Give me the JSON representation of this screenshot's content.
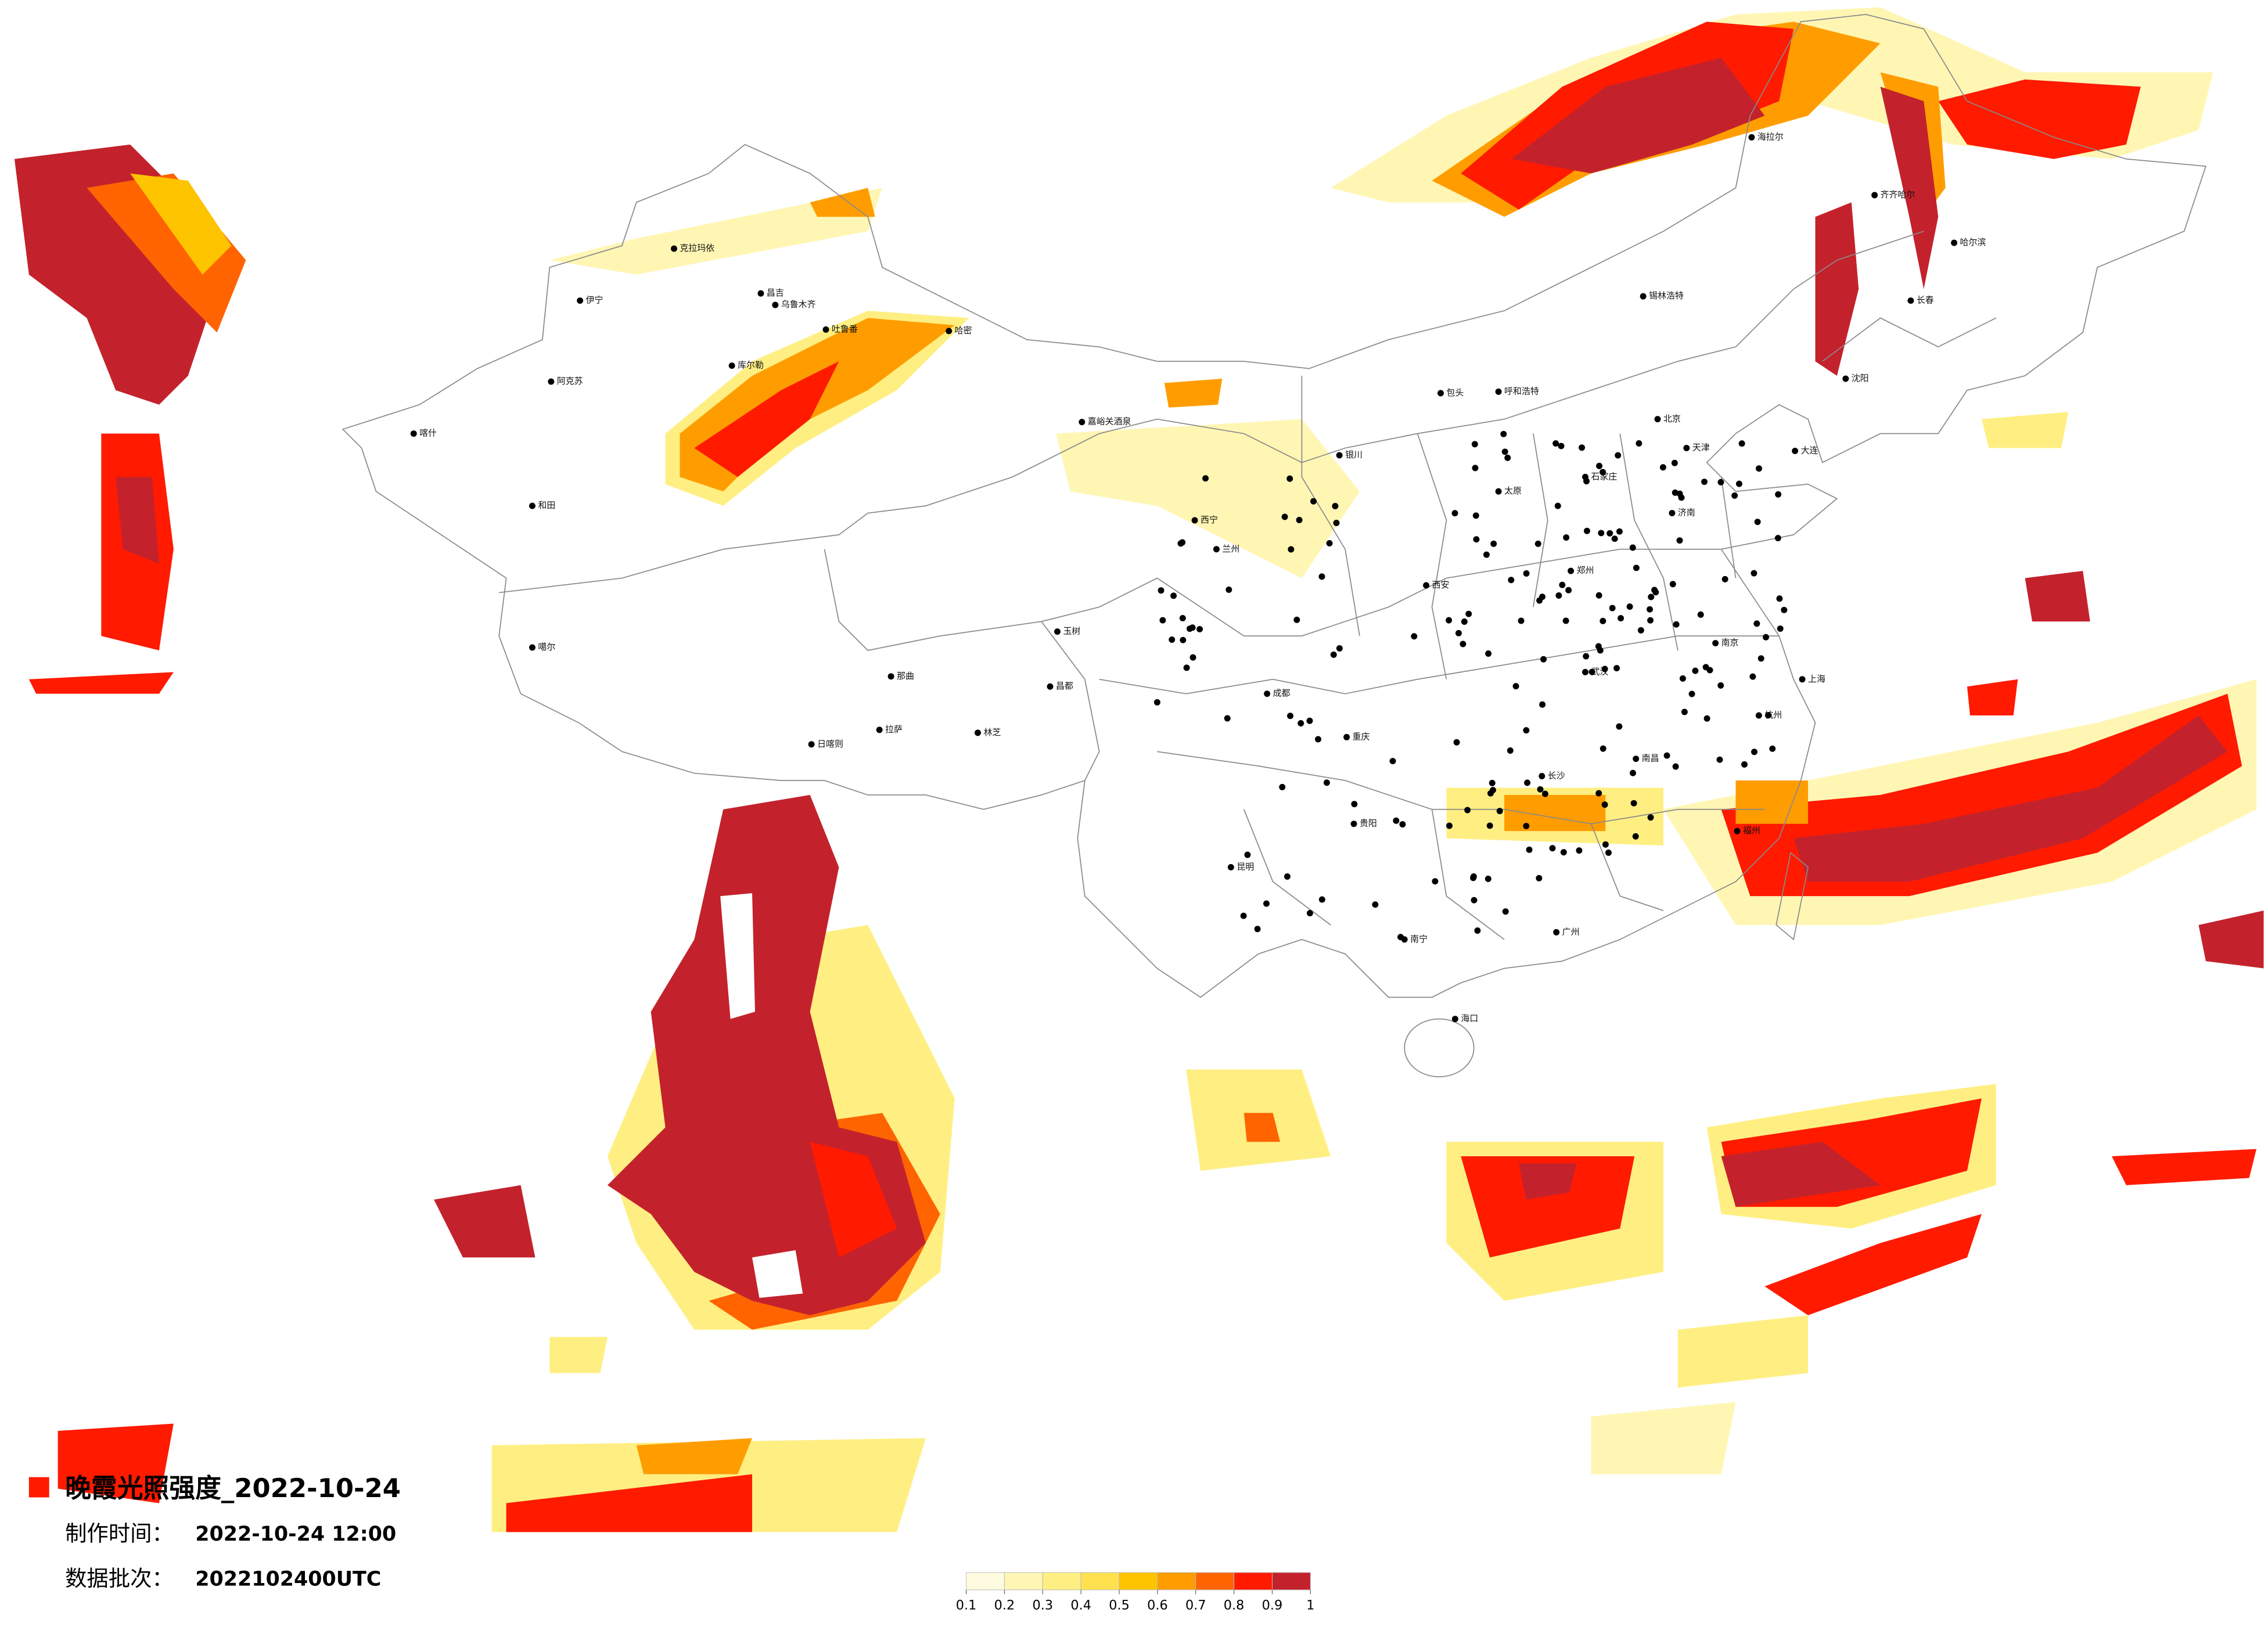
{
  "title": "晚霞光照强度_2022-10-24",
  "made_time": {
    "label": "制作时间：",
    "value": "2022-10-24 12:00"
  },
  "batch": {
    "label": "数据批次：",
    "value": "2022102400UTC"
  },
  "legend": {
    "ticks": [
      0.1,
      0.2,
      0.3,
      0.4,
      0.5,
      0.6,
      0.7,
      0.8,
      0.9,
      1
    ],
    "colors": [
      "#fffbe0",
      "#fff6b4",
      "#ffef82",
      "#ffe14f",
      "#ffc400",
      "#ff9d00",
      "#ff6400",
      "#ff1a00",
      "#c3222c"
    ]
  },
  "cities": [
    "克拉玛依",
    "伊宁",
    "昌吉",
    "乌鲁木齐",
    "吐鲁番",
    "哈密",
    "库尔勒",
    "阿克苏",
    "喀什",
    "和田",
    "噶尔",
    "日喀则",
    "拉萨",
    "林芝",
    "那曲",
    "昌都",
    "玉树",
    "嘉峪关酒泉",
    "西宁",
    "兰州",
    "银川",
    "呼和浩特",
    "包头",
    "北京",
    "天津",
    "石家庄",
    "太原",
    "济南",
    "郑州",
    "西安",
    "成都",
    "重庆",
    "武汉",
    "长沙",
    "南昌",
    "杭州",
    "上海",
    "南京",
    "福州",
    "广州",
    "南宁",
    "昆明",
    "贵阳",
    "海口",
    "哈尔滨",
    "长春",
    "沈阳",
    "大连",
    "齐齐哈尔",
    "海拉尔",
    "锡林浩特"
  ]
}
